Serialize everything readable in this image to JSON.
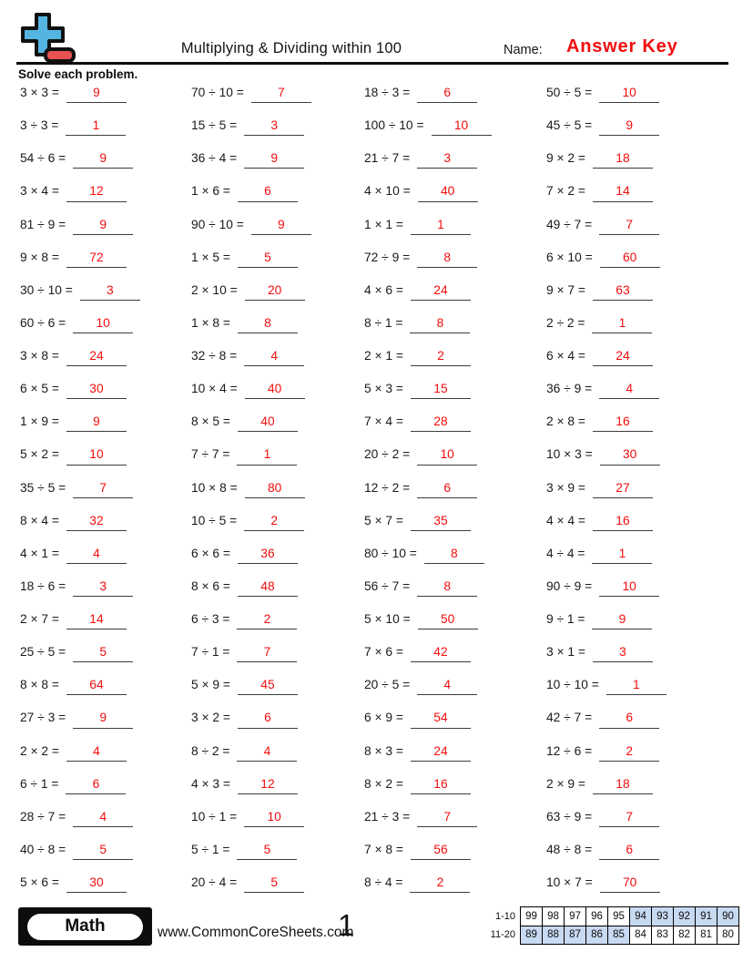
{
  "header": {
    "title": "Multiplying & Dividing within 100",
    "name_label": "Name:",
    "name_value": "Answer Key",
    "instruction": "Solve each problem.",
    "logo_colors": {
      "plus": "#55b5e2",
      "minus": "#e85252",
      "outline": "#111111"
    }
  },
  "problems": {
    "columns": [
      [
        {
          "q": "3 × 3 =",
          "a": "9"
        },
        {
          "q": "3 ÷ 3 =",
          "a": "1"
        },
        {
          "q": "54 ÷ 6 =",
          "a": "9"
        },
        {
          "q": "3 × 4 =",
          "a": "12"
        },
        {
          "q": "81 ÷ 9 =",
          "a": "9"
        },
        {
          "q": "9 × 8 =",
          "a": "72"
        },
        {
          "q": "30 ÷ 10 =",
          "a": "3"
        },
        {
          "q": "60 ÷ 6 =",
          "a": "10"
        },
        {
          "q": "3 × 8 =",
          "a": "24"
        },
        {
          "q": "6 × 5 =",
          "a": "30"
        },
        {
          "q": "1 × 9 =",
          "a": "9"
        },
        {
          "q": "5 × 2 =",
          "a": "10"
        },
        {
          "q": "35 ÷ 5 =",
          "a": "7"
        },
        {
          "q": "8 × 4 =",
          "a": "32"
        },
        {
          "q": "4 × 1 =",
          "a": "4"
        },
        {
          "q": "18 ÷ 6 =",
          "a": "3"
        },
        {
          "q": "2 × 7 =",
          "a": "14"
        },
        {
          "q": "25 ÷ 5 =",
          "a": "5"
        },
        {
          "q": "8 × 8 =",
          "a": "64"
        },
        {
          "q": "27 ÷ 3 =",
          "a": "9"
        },
        {
          "q": "2 × 2 =",
          "a": "4"
        },
        {
          "q": "6 ÷ 1 =",
          "a": "6"
        },
        {
          "q": "28 ÷ 7 =",
          "a": "4"
        },
        {
          "q": "40 ÷ 8 =",
          "a": "5"
        },
        {
          "q": "5 × 6 =",
          "a": "30"
        }
      ],
      [
        {
          "q": "70 ÷ 10 =",
          "a": "7"
        },
        {
          "q": "15 ÷ 5 =",
          "a": "3"
        },
        {
          "q": "36 ÷ 4 =",
          "a": "9"
        },
        {
          "q": "1 × 6 =",
          "a": "6"
        },
        {
          "q": "90 ÷ 10 =",
          "a": "9"
        },
        {
          "q": "1 × 5 =",
          "a": "5"
        },
        {
          "q": "2 × 10 =",
          "a": "20"
        },
        {
          "q": "1 × 8 =",
          "a": "8"
        },
        {
          "q": "32 ÷ 8 =",
          "a": "4"
        },
        {
          "q": "10 × 4 =",
          "a": "40"
        },
        {
          "q": "8 × 5 =",
          "a": "40"
        },
        {
          "q": "7 ÷ 7 =",
          "a": "1"
        },
        {
          "q": "10 × 8 =",
          "a": "80"
        },
        {
          "q": "10 ÷ 5 =",
          "a": "2"
        },
        {
          "q": "6 × 6 =",
          "a": "36"
        },
        {
          "q": "8 × 6 =",
          "a": "48"
        },
        {
          "q": "6 ÷ 3 =",
          "a": "2"
        },
        {
          "q": "7 ÷ 1 =",
          "a": "7"
        },
        {
          "q": "5 × 9 =",
          "a": "45"
        },
        {
          "q": "3 × 2 =",
          "a": "6"
        },
        {
          "q": "8 ÷ 2 =",
          "a": "4"
        },
        {
          "q": "4 × 3 =",
          "a": "12"
        },
        {
          "q": "10 ÷ 1 =",
          "a": "10"
        },
        {
          "q": "5 ÷ 1 =",
          "a": "5"
        },
        {
          "q": "20 ÷ 4 =",
          "a": "5"
        }
      ],
      [
        {
          "q": "18 ÷ 3 =",
          "a": "6"
        },
        {
          "q": "100 ÷ 10 =",
          "a": "10"
        },
        {
          "q": "21 ÷ 7 =",
          "a": "3"
        },
        {
          "q": "4 × 10 =",
          "a": "40"
        },
        {
          "q": "1 × 1 =",
          "a": "1"
        },
        {
          "q": "72 ÷ 9 =",
          "a": "8"
        },
        {
          "q": "4 × 6 =",
          "a": "24"
        },
        {
          "q": "8 ÷ 1 =",
          "a": "8"
        },
        {
          "q": "2 × 1 =",
          "a": "2"
        },
        {
          "q": "5 × 3 =",
          "a": "15"
        },
        {
          "q": "7 × 4 =",
          "a": "28"
        },
        {
          "q": "20 ÷ 2 =",
          "a": "10"
        },
        {
          "q": "12 ÷ 2 =",
          "a": "6"
        },
        {
          "q": "5 × 7 =",
          "a": "35"
        },
        {
          "q": "80 ÷ 10 =",
          "a": "8"
        },
        {
          "q": "56 ÷ 7 =",
          "a": "8"
        },
        {
          "q": "5 × 10 =",
          "a": "50"
        },
        {
          "q": "7 × 6 =",
          "a": "42"
        },
        {
          "q": "20 ÷ 5 =",
          "a": "4"
        },
        {
          "q": "6 × 9 =",
          "a": "54"
        },
        {
          "q": "8 × 3 =",
          "a": "24"
        },
        {
          "q": "8 × 2 =",
          "a": "16"
        },
        {
          "q": "21 ÷ 3 =",
          "a": "7"
        },
        {
          "q": "7 × 8 =",
          "a": "56"
        },
        {
          "q": "8 ÷ 4 =",
          "a": "2"
        }
      ],
      [
        {
          "q": "50 ÷ 5 =",
          "a": "10"
        },
        {
          "q": "45 ÷ 5 =",
          "a": "9"
        },
        {
          "q": "9 × 2 =",
          "a": "18"
        },
        {
          "q": "7 × 2 =",
          "a": "14"
        },
        {
          "q": "49 ÷ 7 =",
          "a": "7"
        },
        {
          "q": "6 × 10 =",
          "a": "60"
        },
        {
          "q": "9 × 7 =",
          "a": "63"
        },
        {
          "q": "2 ÷ 2 =",
          "a": "1"
        },
        {
          "q": "6 × 4 =",
          "a": "24"
        },
        {
          "q": "36 ÷ 9 =",
          "a": "4"
        },
        {
          "q": "2 × 8 =",
          "a": "16"
        },
        {
          "q": "10 × 3 =",
          "a": "30"
        },
        {
          "q": "3 × 9 =",
          "a": "27"
        },
        {
          "q": "4 × 4 =",
          "a": "16"
        },
        {
          "q": "4 ÷ 4 =",
          "a": "1"
        },
        {
          "q": "90 ÷ 9 =",
          "a": "10"
        },
        {
          "q": "9 ÷ 1 =",
          "a": "9"
        },
        {
          "q": "3 × 1 =",
          "a": "3"
        },
        {
          "q": "10 ÷ 10 =",
          "a": "1"
        },
        {
          "q": "42 ÷ 7 =",
          "a": "6"
        },
        {
          "q": "12 ÷ 6 =",
          "a": "2"
        },
        {
          "q": "2 × 9 =",
          "a": "18"
        },
        {
          "q": "63 ÷ 9 =",
          "a": "7"
        },
        {
          "q": "48 ÷ 8 =",
          "a": "6"
        },
        {
          "q": "10 × 7 =",
          "a": "70"
        }
      ]
    ]
  },
  "footer": {
    "subject": "Math",
    "website": "www.CommonCoreSheets.com",
    "page_number": "1",
    "score_rows": [
      {
        "label": "1-10",
        "cells": [
          "99",
          "98",
          "97",
          "96",
          "95",
          "94",
          "93",
          "92",
          "91",
          "90"
        ],
        "highlighted": [
          5,
          6,
          7,
          8,
          9
        ]
      },
      {
        "label": "11-20",
        "cells": [
          "89",
          "88",
          "87",
          "86",
          "85",
          "84",
          "83",
          "82",
          "81",
          "80"
        ],
        "highlighted": [
          0,
          1,
          2,
          3,
          4
        ]
      }
    ]
  },
  "colors": {
    "answer_red": "#f20d0d",
    "highlight_blue": "#c8d9f2"
  }
}
